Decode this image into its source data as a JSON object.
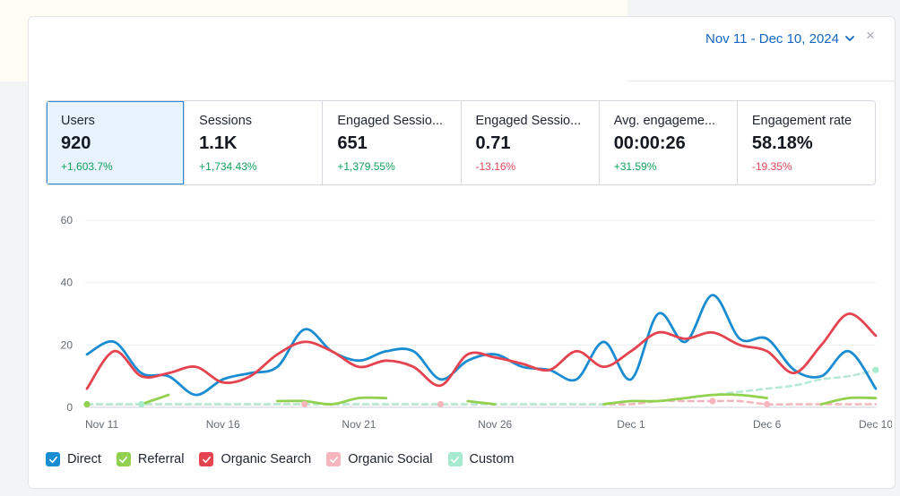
{
  "header": {
    "date_range": "Nov 11 - Dec 10, 2024",
    "close_symbol": "×"
  },
  "metrics": [
    {
      "label": "Users",
      "value": "920",
      "delta": "+1,603.7%",
      "trend": "positive",
      "active": true
    },
    {
      "label": "Sessions",
      "value": "1.1K",
      "delta": "+1,734.43%",
      "trend": "positive",
      "active": false
    },
    {
      "label": "Engaged Sessio...",
      "value": "651",
      "delta": "+1,379.55%",
      "trend": "positive",
      "active": false
    },
    {
      "label": "Engaged Sessio...",
      "value": "0.71",
      "delta": "-13.16%",
      "trend": "negative",
      "active": false
    },
    {
      "label": "Avg. engageme...",
      "value": "00:00:26",
      "delta": "+31.59%",
      "trend": "positive",
      "active": false
    },
    {
      "label": "Engagement rate",
      "value": "58.18%",
      "delta": "-19.35%",
      "trend": "negative",
      "active": false
    }
  ],
  "legend": [
    {
      "label": "Direct",
      "color": "#1a8dd2",
      "checked": true
    },
    {
      "label": "Referral",
      "color": "#92d050",
      "checked": true
    },
    {
      "label": "Organic Search",
      "color": "#e5434f",
      "checked": true
    },
    {
      "label": "Organic Social",
      "color": "#f7b6bc",
      "checked": true
    },
    {
      "label": "Custom",
      "color": "#a6ebcd",
      "checked": true
    }
  ],
  "chart_data": {
    "type": "line",
    "y_ticks": [
      "0",
      "20",
      "40",
      "60"
    ],
    "ylim": [
      0,
      60
    ],
    "x_tick_labels": [
      "Nov 11",
      "Nov 16",
      "Nov 21",
      "Nov 26",
      "Dec 1",
      "Dec 6",
      "Dec 10"
    ],
    "x_tick_index": [
      0,
      5,
      10,
      15,
      20,
      25,
      29
    ],
    "categories": [
      "Nov 11",
      "Nov 12",
      "Nov 13",
      "Nov 14",
      "Nov 15",
      "Nov 16",
      "Nov 17",
      "Nov 18",
      "Nov 19",
      "Nov 20",
      "Nov 21",
      "Nov 22",
      "Nov 23",
      "Nov 24",
      "Nov 25",
      "Nov 26",
      "Nov 27",
      "Nov 28",
      "Nov 29",
      "Nov 30",
      "Dec 1",
      "Dec 2",
      "Dec 3",
      "Dec 4",
      "Dec 5",
      "Dec 6",
      "Dec 7",
      "Dec 8",
      "Dec 9",
      "Dec 10"
    ],
    "grid": true,
    "series": [
      {
        "name": "Direct",
        "color": "#1a8dd2",
        "dashed": false,
        "values": [
          17,
          21,
          11,
          10,
          4,
          9,
          11,
          13,
          25,
          18,
          15,
          18,
          18,
          9,
          15,
          17,
          13,
          12,
          9,
          21,
          9,
          30,
          21,
          36,
          22,
          22,
          12,
          10,
          18,
          6
        ]
      },
      {
        "name": "Organic Search",
        "color": "#e5434f",
        "dashed": false,
        "values": [
          6,
          18,
          10,
          11,
          13,
          8,
          10,
          17,
          21,
          18,
          13,
          15,
          13,
          7,
          17,
          16,
          14,
          12,
          18,
          13,
          18,
          24,
          22,
          24,
          20,
          18,
          11,
          20,
          30,
          23
        ]
      },
      {
        "name": "Referral",
        "color": "#92d050",
        "dashed": false,
        "values": [
          1,
          null,
          1,
          4,
          null,
          null,
          null,
          2,
          2,
          1,
          3,
          3,
          null,
          null,
          2,
          1,
          null,
          null,
          null,
          1,
          2,
          2,
          3,
          4,
          4,
          3,
          null,
          1,
          3,
          3
        ]
      },
      {
        "name": "Organic Social",
        "color": "#f2b6bc",
        "dashed": true,
        "values": [
          1,
          1,
          1,
          1,
          1,
          1,
          1,
          1,
          1,
          1,
          1,
          1,
          1,
          1,
          1,
          1,
          1,
          1,
          1,
          1,
          1,
          2,
          2,
          2,
          2,
          1,
          1,
          1,
          1,
          1
        ]
      },
      {
        "name": "Custom",
        "color": "#b5e9d3",
        "dashed": true,
        "values": [
          1,
          1,
          1,
          1,
          1,
          1,
          1,
          1,
          1,
          1,
          1,
          1,
          1,
          1,
          1,
          1,
          1,
          1,
          1,
          1,
          2,
          2,
          3,
          4,
          5,
          6,
          7,
          9,
          10,
          12
        ]
      }
    ]
  }
}
